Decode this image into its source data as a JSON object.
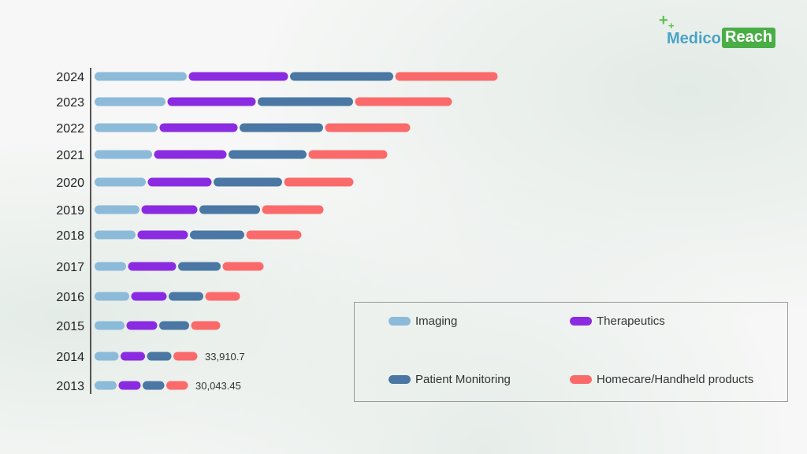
{
  "brand": {
    "part1": "Medico",
    "part2": "Reach",
    "plus_icon": "plus-icon"
  },
  "colors": {
    "imaging": "#8cbad9",
    "therapeutics": "#8a2be2",
    "patient_monitoring": "#4a77a3",
    "homecare": "#fb6a6a"
  },
  "chart_data": {
    "type": "bar",
    "orientation": "horizontal",
    "stacked": true,
    "categories": [
      "2024",
      "2023",
      "2022",
      "2021",
      "2020",
      "2019",
      "2018",
      "2017",
      "2016",
      "2015",
      "2014",
      "2013"
    ],
    "series": [
      {
        "name": "Imaging",
        "color": "#8cbad9",
        "values": [
          11700,
          9000,
          8000,
          7300,
          6500,
          5700,
          5200,
          4000,
          4400,
          3800,
          3050,
          2800
        ]
      },
      {
        "name": "Therapeutics",
        "color": "#8a2be2",
        "values": [
          12600,
          11200,
          9900,
          9200,
          8100,
          7100,
          6400,
          6100,
          4500,
          3900,
          3100,
          2800
        ]
      },
      {
        "name": "Patient Monitoring",
        "color": "#4a77a3",
        "values": [
          13100,
          12100,
          10600,
          9900,
          8700,
          7700,
          6900,
          5400,
          4400,
          3800,
          3100,
          2750
        ]
      },
      {
        "name": "Homecare/Handheld products",
        "color": "#fb6a6a",
        "values": [
          13000,
          12300,
          10800,
          10000,
          8800,
          7800,
          7000,
          5200,
          4400,
          3700,
          3050,
          2750
        ]
      }
    ],
    "annotations": [
      {
        "category": "2014",
        "text": "33,910.7"
      },
      {
        "category": "2013",
        "text": "30,043.45"
      }
    ],
    "xlim": [
      0,
      58000
    ],
    "grid": false,
    "legend_position": "bottom-right"
  }
}
